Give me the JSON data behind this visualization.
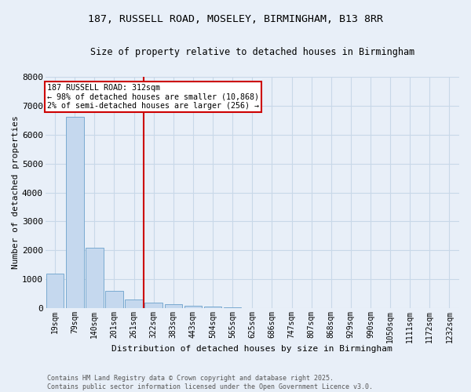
{
  "title_line1": "187, RUSSELL ROAD, MOSELEY, BIRMINGHAM, B13 8RR",
  "title_line2": "Size of property relative to detached houses in Birmingham",
  "xlabel": "Distribution of detached houses by size in Birmingham",
  "ylabel": "Number of detached properties",
  "bar_labels": [
    "19sqm",
    "79sqm",
    "140sqm",
    "201sqm",
    "261sqm",
    "322sqm",
    "383sqm",
    "443sqm",
    "504sqm",
    "565sqm",
    "625sqm",
    "686sqm",
    "747sqm",
    "807sqm",
    "868sqm",
    "929sqm",
    "990sqm",
    "1050sqm",
    "1111sqm",
    "1172sqm",
    "1232sqm"
  ],
  "bar_heights": [
    1200,
    6620,
    2100,
    600,
    300,
    200,
    140,
    80,
    50,
    30,
    20,
    15,
    10,
    8,
    6,
    5,
    4,
    3,
    2,
    1,
    1
  ],
  "bar_color": "#c5d8ee",
  "bar_edge_color": "#7aaad0",
  "vline_x_index": 5,
  "vline_color": "#cc0000",
  "annotation_text": "187 RUSSELL ROAD: 312sqm\n← 98% of detached houses are smaller (10,868)\n2% of semi-detached houses are larger (256) →",
  "annotation_box_color": "white",
  "annotation_box_edge": "#cc0000",
  "grid_color": "#c8d8e8",
  "background_color": "#e8eff8",
  "plot_bg_color": "#e8eff8",
  "ylim": [
    0,
    8000
  ],
  "yticks": [
    0,
    1000,
    2000,
    3000,
    4000,
    5000,
    6000,
    7000,
    8000
  ],
  "footnote_line1": "Contains HM Land Registry data © Crown copyright and database right 2025.",
  "footnote_line2": "Contains public sector information licensed under the Open Government Licence v3.0."
}
